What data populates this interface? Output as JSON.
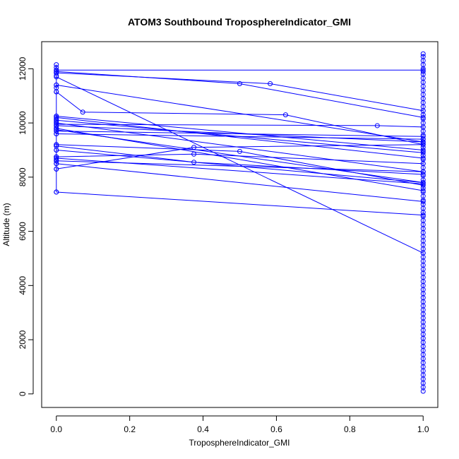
{
  "chart_data": {
    "type": "line",
    "title": "ATOM3 Southbound TroposphereIndicator_GMI",
    "xlabel": "TroposphereIndicator_GMI",
    "ylabel": "Altitude (m)",
    "xlim": [
      -0.04,
      1.04
    ],
    "ylim": [
      -500,
      13000
    ],
    "x_ticks": [
      0.0,
      0.2,
      0.4,
      0.6,
      0.8,
      1.0
    ],
    "x_tick_labels": [
      "0.0",
      "0.2",
      "0.4",
      "0.6",
      "0.8",
      "1.0"
    ],
    "y_ticks": [
      0,
      2000,
      4000,
      6000,
      8000,
      10000,
      12000
    ],
    "y_tick_labels": [
      "0",
      "2000",
      "4000",
      "6000",
      "8000",
      "10000",
      "12000"
    ],
    "grid": false,
    "color": "#0000ff",
    "marker": "open-circle",
    "series": [
      {
        "x": [
          0,
          1
        ],
        "y": [
          11950,
          11950
        ]
      },
      {
        "x": [
          0,
          0.5,
          1
        ],
        "y": [
          11900,
          11450,
          10200
        ]
      },
      {
        "x": [
          0,
          0.583,
          1
        ],
        "y": [
          11850,
          11450,
          10450
        ]
      },
      {
        "x": [
          0,
          1
        ],
        "y": [
          11700,
          5200
        ]
      },
      {
        "x": [
          0,
          1
        ],
        "y": [
          11400,
          9300
        ]
      },
      {
        "x": [
          0,
          0.072,
          0.625,
          1
        ],
        "y": [
          11150,
          10400,
          10300,
          9200
        ]
      },
      {
        "x": [
          0,
          1
        ],
        "y": [
          10250,
          9000
        ]
      },
      {
        "x": [
          0,
          1
        ],
        "y": [
          10200,
          8700
        ]
      },
      {
        "x": [
          0,
          1
        ],
        "y": [
          10100,
          8900
        ]
      },
      {
        "x": [
          0,
          1
        ],
        "y": [
          10000,
          8200
        ]
      },
      {
        "x": [
          0,
          0.875,
          1
        ],
        "y": [
          9950,
          9900,
          9850
        ]
      },
      {
        "x": [
          0,
          1
        ],
        "y": [
          9900,
          9300
        ]
      },
      {
        "x": [
          0,
          1
        ],
        "y": [
          9800,
          7500
        ]
      },
      {
        "x": [
          0,
          1
        ],
        "y": [
          9750,
          7800
        ]
      },
      {
        "x": [
          0,
          1
        ],
        "y": [
          9700,
          9500
        ]
      },
      {
        "x": [
          0,
          1
        ],
        "y": [
          9600,
          9400
        ]
      },
      {
        "x": [
          0,
          0.5,
          1
        ],
        "y": [
          9200,
          8950,
          7700
        ]
      },
      {
        "x": [
          0,
          0.375,
          1
        ],
        "y": [
          9150,
          8550,
          8100
        ]
      },
      {
        "x": [
          0,
          1
        ],
        "y": [
          9000,
          7800
        ]
      },
      {
        "x": [
          0,
          0.375,
          1
        ],
        "y": [
          8750,
          8850,
          8500
        ]
      },
      {
        "x": [
          0,
          1
        ],
        "y": [
          8700,
          7750
        ]
      },
      {
        "x": [
          0,
          1
        ],
        "y": [
          8600,
          8200
        ]
      },
      {
        "x": [
          0,
          1
        ],
        "y": [
          8500,
          7100
        ]
      },
      {
        "x": [
          0,
          0.375,
          1
        ],
        "y": [
          8300,
          9100,
          9200
        ]
      },
      {
        "x": [
          0,
          1
        ],
        "y": [
          7450,
          6600
        ]
      }
    ],
    "points_x1": [
      12550,
      12450,
      12300,
      12150,
      12000,
      11900,
      11800,
      11650,
      11500,
      11350,
      11200,
      11050,
      10900,
      10750,
      10600,
      10450,
      10300,
      10150,
      10000,
      9850,
      9700,
      9550,
      9400,
      9250,
      9100,
      8950,
      8800,
      8650,
      8500,
      8350,
      8200,
      8050,
      7900,
      7750,
      7600,
      7450,
      7300,
      7150,
      7000,
      6850,
      6700,
      6550,
      6400,
      6250,
      6100,
      5950,
      5800,
      5650,
      5500,
      5350,
      5200,
      5050,
      4900,
      4750,
      4600,
      4450,
      4300,
      4150,
      4000,
      3850,
      3700,
      3550,
      3400,
      3250,
      3100,
      2950,
      2800,
      2650,
      2500,
      2350,
      2200,
      2050,
      1900,
      1750,
      1600,
      1450,
      1300,
      1150,
      1000,
      850,
      700,
      550,
      400,
      250,
      100
    ],
    "points_x0": [
      12150,
      12050,
      11950,
      11850,
      11750,
      11400,
      11300,
      11150,
      10250,
      10150,
      10050,
      9900,
      9800,
      9600,
      9200,
      9150,
      9000,
      8750,
      8650,
      8600,
      8500,
      8300,
      7450
    ]
  }
}
